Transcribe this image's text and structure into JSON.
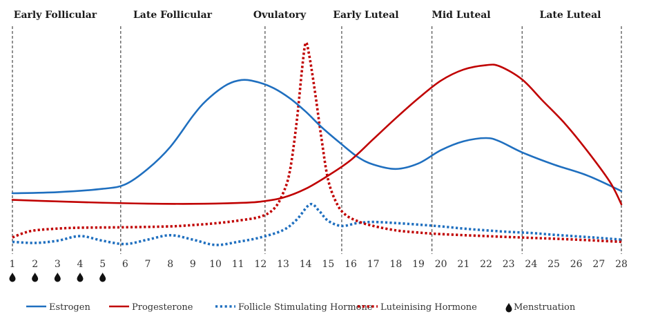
{
  "chart_data": {
    "type": "line",
    "title": "",
    "xlabel": "",
    "ylabel": "",
    "xlim": [
      1,
      28
    ],
    "ylim": [
      0,
      100
    ],
    "y_units": "relative hormone level (unlabelled axis)",
    "grid": false,
    "legend_position": "bottom",
    "x_ticks": [
      1,
      2,
      3,
      4,
      5,
      6,
      7,
      8,
      9,
      10,
      11,
      12,
      13,
      14,
      15,
      16,
      17,
      18,
      19,
      20,
      21,
      22,
      23,
      24,
      25,
      26,
      27,
      28
    ],
    "phases": [
      {
        "label": "Early Follicular",
        "start": 1,
        "end": 5.8
      },
      {
        "label": "Late Follicular",
        "start": 5.8,
        "end": 12.2
      },
      {
        "label": "Ovulatory",
        "start": 12.2,
        "end": 15.6
      },
      {
        "label": "Early Luteal",
        "start": 15.6,
        "end": 19.6
      },
      {
        "label": "Mid Luteal",
        "start": 19.6,
        "end": 23.6
      },
      {
        "label": "Late Luteal",
        "start": 23.6,
        "end": 28
      }
    ],
    "phase_boundaries": [
      1,
      5.8,
      12.2,
      15.6,
      19.6,
      23.6,
      28
    ],
    "menstruation_days": [
      1,
      2,
      3,
      4,
      5
    ],
    "series": [
      {
        "name": "Estrogen",
        "style": "solid",
        "color": "#1f6fbf",
        "x": [
          1,
          3,
          5,
          6,
          7,
          8,
          9,
          9.6,
          10.4,
          11,
          11.6,
          12.5,
          13.3,
          14,
          14.7,
          15.5,
          16.3,
          17,
          18,
          19,
          20,
          21,
          22,
          22.6,
          23.6,
          25,
          26.5,
          28
        ],
        "y": [
          25,
          25.5,
          27,
          29,
          36,
          46,
          60,
          67,
          73.5,
          76,
          76,
          73,
          68,
          62,
          55,
          48,
          41.5,
          38,
          36,
          38.5,
          44.5,
          48.5,
          50,
          48.5,
          43.5,
          38,
          33,
          26
        ]
      },
      {
        "name": "Progesterone",
        "style": "solid",
        "color": "#c00000",
        "x": [
          1,
          3,
          5,
          7,
          9,
          11,
          12,
          13,
          14,
          15,
          16,
          17,
          18,
          19,
          20,
          21,
          22,
          22.6,
          23.6,
          24.5,
          25.5,
          26.5,
          27.5,
          28
        ],
        "y": [
          22,
          21.3,
          20.7,
          20.3,
          20.2,
          20.6,
          21.2,
          23,
          27,
          33,
          40,
          49.5,
          59,
          68,
          76,
          81,
          83,
          82.5,
          76.5,
          67,
          56.5,
          44,
          30,
          20
        ]
      },
      {
        "name": "Follicle Stimulating Hormone",
        "style": "dotted",
        "color": "#1f6fbf",
        "x": [
          1,
          2,
          3,
          4,
          5,
          6,
          7,
          8,
          9,
          10,
          11,
          12,
          13,
          13.6,
          14.2,
          14.6,
          15,
          15.6,
          16.3,
          17,
          18,
          19,
          20,
          21,
          22,
          23,
          24,
          25,
          26,
          27,
          28
        ],
        "y": [
          3,
          2.5,
          3.5,
          5.6,
          3.5,
          2,
          4,
          6,
          4,
          1.6,
          3,
          5,
          8.3,
          13,
          20,
          17,
          12.5,
          10.2,
          11.5,
          12,
          11.5,
          10.8,
          10,
          9,
          8.2,
          7.5,
          7,
          6.2,
          5.5,
          4.8,
          4
        ]
      },
      {
        "name": "Luteinising Hormone",
        "style": "dotted",
        "color": "#c00000",
        "x": [
          1,
          1.5,
          2,
          3,
          4,
          6,
          8,
          9,
          10,
          11,
          12,
          12.6,
          13,
          13.3,
          13.6,
          13.85,
          14,
          14.15,
          14.4,
          14.7,
          15,
          15.4,
          15.8,
          16.4,
          17,
          18,
          19,
          20,
          22,
          24,
          26,
          28
        ],
        "y": [
          5,
          7,
          8.2,
          9,
          9.4,
          9.6,
          10,
          10.6,
          11.4,
          12.6,
          14.4,
          18,
          25,
          35,
          57,
          82,
          93,
          88,
          72,
          50,
          31,
          20,
          15,
          12,
          10.2,
          8.2,
          7.2,
          6.5,
          5.6,
          4.8,
          4,
          3
        ]
      }
    ],
    "legend": [
      {
        "label": "Estrogen",
        "style": "solid",
        "color": "#1f6fbf"
      },
      {
        "label": "Progesterone",
        "style": "solid",
        "color": "#c00000"
      },
      {
        "label": "Follicle Stimulating Hormone",
        "style": "dotted",
        "color": "#1f6fbf"
      },
      {
        "label": "Luteinising Hormone",
        "style": "dotted",
        "color": "#c00000"
      },
      {
        "label": "Menstruation",
        "style": "drop-icon",
        "color": "#111111",
        "icon": "drop-icon"
      }
    ]
  }
}
